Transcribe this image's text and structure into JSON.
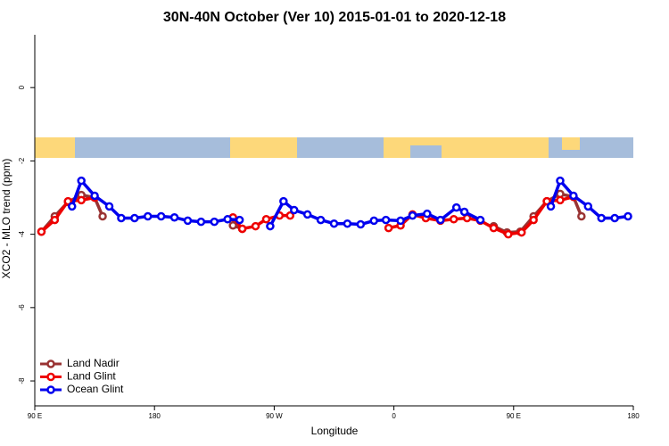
{
  "chart_data": {
    "type": "line",
    "title": "30N-40N October (Ver 10)   2015-01-01 to 2020-12-18",
    "x_label": "Longitude",
    "y_label": "XCO2 - MLO trend (ppm)",
    "xlim": [
      90,
      540
    ],
    "xticks": [
      {
        "value": 90,
        "label": "90 E"
      },
      {
        "value": 180,
        "label": "180"
      },
      {
        "value": 270,
        "label": "90 W"
      },
      {
        "value": 360,
        "label": "0"
      },
      {
        "value": 450,
        "label": "90 E"
      },
      {
        "value": 540,
        "label": "180"
      }
    ],
    "ylim": [
      -8.68,
      1.44
    ],
    "yticks": [
      0,
      -2,
      -4,
      -6,
      -8
    ],
    "legend": "bottom-left",
    "series": [
      {
        "name": "Land Nadir",
        "color": "#993333",
        "x": [
          95,
          105,
          115,
          125,
          135,
          141,
          200,
          239,
          246,
          300,
          435,
          445,
          455,
          465,
          475,
          485,
          495,
          501
        ],
        "values": [
          -3.93,
          -3.51,
          -3.12,
          -2.93,
          -3.0,
          -3.51,
          null,
          -3.76,
          -3.85,
          null,
          -3.78,
          -3.95,
          -3.93,
          -3.51,
          -3.1,
          -2.9,
          -2.98,
          -3.51
        ]
      },
      {
        "name": "Land Glint",
        "color": "#ee0000",
        "x": [
          95,
          105,
          115,
          125,
          135,
          200,
          239,
          246,
          256,
          264,
          274,
          282,
          330,
          356,
          365,
          374,
          384,
          395,
          405,
          415,
          425,
          435,
          446,
          456,
          465,
          475,
          485,
          495
        ],
        "values": [
          -3.93,
          -3.61,
          -3.1,
          -3.07,
          -3.0,
          null,
          -3.54,
          -3.85,
          -3.78,
          -3.59,
          -3.49,
          -3.49,
          null,
          -3.83,
          -3.76,
          -3.46,
          -3.56,
          -3.63,
          -3.59,
          -3.56,
          -3.63,
          -3.83,
          -4.0,
          -3.95,
          -3.61,
          -3.1,
          -3.07,
          -2.98
        ]
      },
      {
        "name": "Ocean Glint",
        "color": "#0000ee",
        "x": [
          118,
          125,
          135,
          146,
          155,
          165,
          175,
          185,
          195,
          205,
          215,
          225,
          235,
          244,
          255,
          267,
          277,
          285,
          295,
          305,
          315,
          325,
          335,
          345,
          354,
          365,
          374,
          385,
          395,
          407,
          413,
          425,
          470,
          478,
          485,
          495,
          506,
          516,
          526,
          536
        ],
        "values": [
          -3.24,
          -2.54,
          -2.95,
          -3.24,
          -3.56,
          -3.56,
          -3.51,
          -3.51,
          -3.54,
          -3.63,
          -3.66,
          -3.66,
          -3.59,
          -3.61,
          null,
          -3.78,
          -3.1,
          -3.34,
          -3.46,
          -3.61,
          -3.71,
          -3.71,
          -3.73,
          -3.63,
          -3.61,
          -3.63,
          -3.49,
          -3.44,
          -3.61,
          -3.27,
          -3.39,
          -3.61,
          null,
          -3.24,
          -2.54,
          -2.95,
          -3.24,
          -3.56,
          -3.56,
          -3.51
        ]
      }
    ]
  }
}
